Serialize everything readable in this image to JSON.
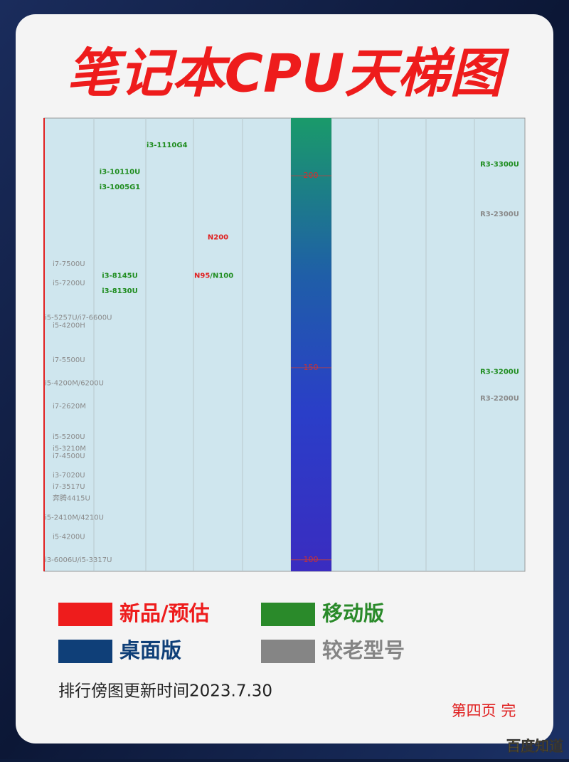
{
  "chart_data": {
    "type": "tier",
    "title": "笔记本CPU天梯图",
    "ylim": [
      97,
      215
    ],
    "yticks": [
      100,
      150,
      200
    ],
    "items": [
      {
        "name": "i3-1110G4",
        "color": "#1e8c1e",
        "value": 208,
        "column": 2
      },
      {
        "name": "i3-10110U",
        "color": "#1e8c1e",
        "value": 201,
        "column": 1
      },
      {
        "name": "i3-1005G1",
        "color": "#1e8c1e",
        "value": 197,
        "column": 1
      },
      {
        "name": "R3-3300U",
        "color": "#1e8c1e",
        "value": 203,
        "column": 9
      },
      {
        "name": "R3-2300U",
        "color": "#8a8a8a",
        "value": 190,
        "column": 9
      },
      {
        "name": "N200",
        "color": "#e02020",
        "value": 184,
        "column": 3
      },
      {
        "name": "i7-7500U",
        "color": "#8a8a8a",
        "value": 177,
        "column": 0
      },
      {
        "name": "i3-8145U",
        "color": "#1e8c1e",
        "value": 174,
        "column": 1
      },
      {
        "name": "N95",
        "color": "#e02020",
        "value": 174,
        "column": 3
      },
      {
        "name": "/N100",
        "color": "#1e8c1e",
        "value": 174,
        "column": 3
      },
      {
        "name": "i5-7200U",
        "color": "#8a8a8a",
        "value": 172,
        "column": 0
      },
      {
        "name": "i3-8130U",
        "color": "#1e8c1e",
        "value": 170,
        "column": 1
      },
      {
        "name": "i5-5257U/i7-6600U",
        "color": "#8a8a8a",
        "value": 163,
        "column": 0
      },
      {
        "name": "i5-4200H",
        "color": "#8a8a8a",
        "value": 161,
        "column": 0
      },
      {
        "name": "i7-5500U",
        "color": "#8a8a8a",
        "value": 152,
        "column": 0
      },
      {
        "name": "R3-3200U",
        "color": "#1e8c1e",
        "value": 149,
        "column": 9
      },
      {
        "name": "i5-4200M/6200U",
        "color": "#8a8a8a",
        "value": 146,
        "column": 0
      },
      {
        "name": "R3-2200U",
        "color": "#8a8a8a",
        "value": 142,
        "column": 9
      },
      {
        "name": "i7-2620M",
        "color": "#8a8a8a",
        "value": 140,
        "column": 0
      },
      {
        "name": "i5-5200U",
        "color": "#8a8a8a",
        "value": 132,
        "column": 0
      },
      {
        "name": "i5-3210M",
        "color": "#8a8a8a",
        "value": 129,
        "column": 0
      },
      {
        "name": "i7-4500U",
        "color": "#8a8a8a",
        "value": 127,
        "column": 0
      },
      {
        "name": "i3-7020U",
        "color": "#8a8a8a",
        "value": 122,
        "column": 0
      },
      {
        "name": "i7-3517U",
        "color": "#8a8a8a",
        "value": 119,
        "column": 0
      },
      {
        "name": "奔腾4415U",
        "color": "#8a8a8a",
        "value": 116,
        "column": 0
      },
      {
        "name": "i5-2410M/4210U",
        "color": "#8a8a8a",
        "value": 111,
        "column": 0
      },
      {
        "name": "i5-4200U",
        "color": "#8a8a8a",
        "value": 106,
        "column": 0
      },
      {
        "name": "i3-6006U/i5-3317U",
        "color": "#8a8a8a",
        "value": 100,
        "column": 0
      }
    ],
    "legend": [
      {
        "label": "新品/预估",
        "color": "#ee1c1c"
      },
      {
        "label": "移动版",
        "color": "#2a8a2a"
      },
      {
        "label": "桌面版",
        "color": "#0f3f78"
      },
      {
        "label": "较老型号",
        "color": "#858585"
      }
    ],
    "footer": "排行傍图更新时间2023.7.30",
    "page_note": "第四页 完",
    "watermark": "百度知道"
  }
}
